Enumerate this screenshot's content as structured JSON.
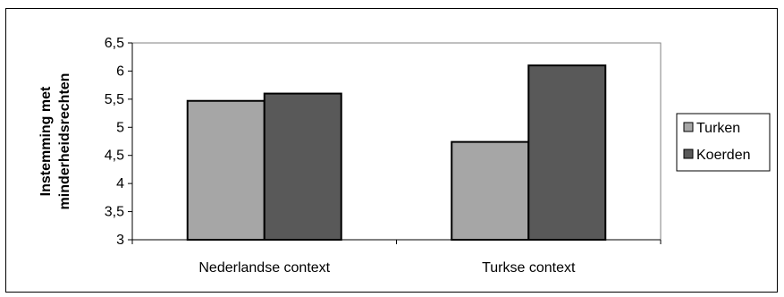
{
  "chart_data": {
    "type": "bar",
    "categories": [
      "Nederlandse context",
      "Turkse context"
    ],
    "series": [
      {
        "name": "Turken",
        "values": [
          5.47,
          4.74
        ],
        "color": "#a6a6a6"
      },
      {
        "name": "Koerden",
        "values": [
          5.6,
          6.1
        ],
        "color": "#595959"
      }
    ],
    "ylabel_lines": [
      "Instemming met",
      "minderheidsrechten"
    ],
    "ylim": [
      3,
      6.5
    ],
    "yticks": [
      "6,5",
      "6",
      "5,5",
      "5",
      "4,5",
      "4",
      "3,5",
      "3"
    ],
    "ytick_values": [
      6.5,
      6,
      5.5,
      5,
      4.5,
      4,
      3.5,
      3
    ],
    "grid": false,
    "legend_position": "right"
  }
}
